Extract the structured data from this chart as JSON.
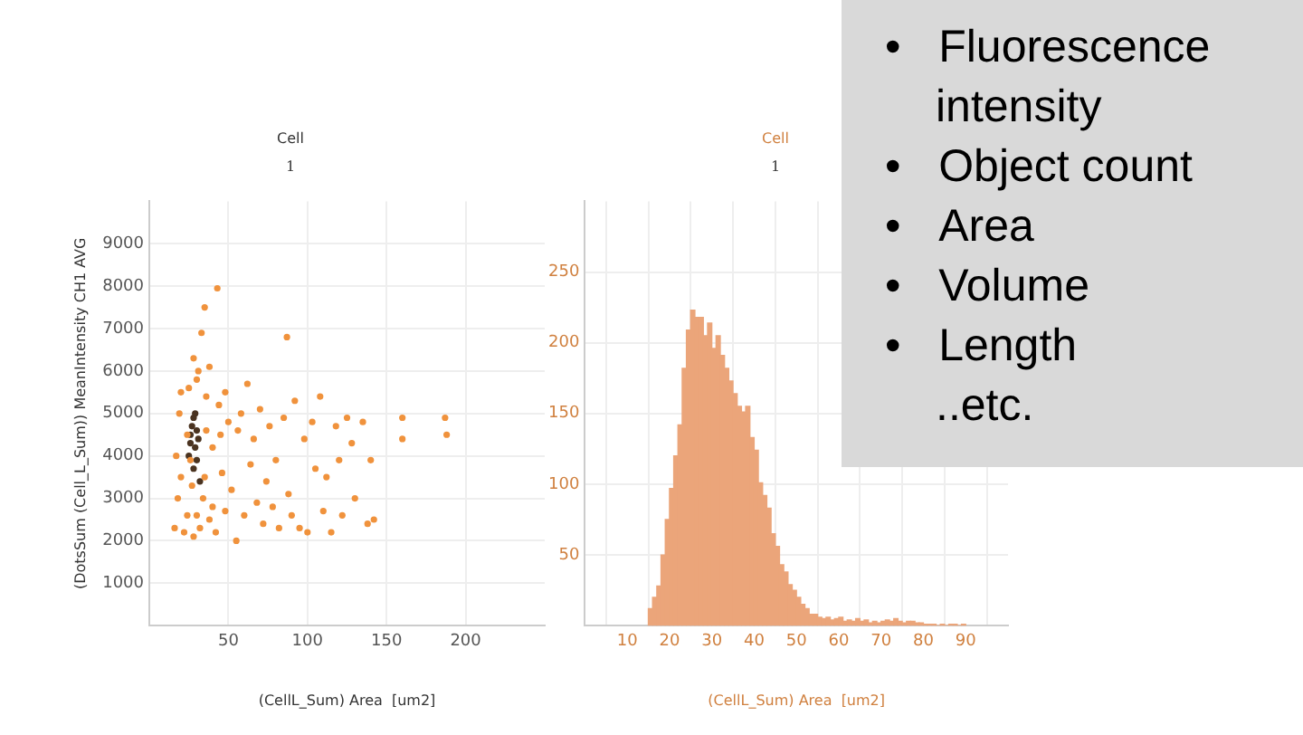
{
  "chart_data": [
    {
      "type": "scatter",
      "title": "Cell",
      "subtitle": "1",
      "xlabel": "(CellL_Sum) Area  [um2]",
      "ylabel": "(DotsSum (Cell_L_Sum)) MeanIntensity CH1 AVG",
      "xlim": [
        0,
        250
      ],
      "xticks": [
        50,
        100,
        150,
        200
      ],
      "ylim": [
        0,
        10000
      ],
      "yticks": [
        1000,
        2000,
        3000,
        4000,
        5000,
        6000,
        7000,
        8000,
        9000
      ],
      "grid": true,
      "legend": false,
      "marker": "circle",
      "series": [
        {
          "color": "#f0923c",
          "x": [
            16,
            18,
            17,
            19,
            20,
            22,
            24,
            25,
            27,
            28,
            30,
            32,
            34,
            36,
            38,
            40,
            42,
            44,
            46,
            48,
            50,
            52,
            55,
            56,
            58,
            60,
            62,
            64,
            66,
            68,
            70,
            72,
            74,
            76,
            78,
            80,
            82,
            85,
            87,
            88,
            90,
            92,
            95,
            98,
            100,
            103,
            105,
            108,
            110,
            112,
            115,
            118,
            120,
            122,
            125,
            128,
            130,
            135,
            138,
            140,
            142,
            160,
            160,
            187,
            188,
            33,
            35,
            43,
            28,
            38,
            31,
            24,
            26,
            45,
            48,
            20,
            35,
            40,
            30,
            36
          ],
          "values": [
            2300,
            3000,
            4000,
            5000,
            5500,
            2200,
            2600,
            5600,
            3300,
            2100,
            5800,
            2300,
            3000,
            5400,
            2500,
            4200,
            2200,
            5200,
            3600,
            2700,
            4800,
            3200,
            2000,
            4600,
            5000,
            2600,
            5700,
            3800,
            4400,
            2900,
            5100,
            2400,
            3400,
            4700,
            2800,
            3900,
            2300,
            4900,
            6800,
            3100,
            2600,
            5300,
            2300,
            4400,
            2200,
            4800,
            3700,
            5400,
            2700,
            3500,
            2200,
            4700,
            3900,
            2600,
            4900,
            4300,
            3000,
            4800,
            2400,
            3900,
            2500,
            4900,
            4400,
            4900,
            4500,
            6900,
            7500,
            7950,
            6300,
            6100,
            6000,
            4500,
            3900,
            4500,
            5500,
            3500,
            3500,
            2800,
            2600,
            4600
          ]
        },
        {
          "color": "#4a3320",
          "x": [
            25,
            26,
            27,
            28,
            29,
            30,
            30,
            31,
            28,
            32,
            29,
            26
          ],
          "values": [
            4000,
            4300,
            4700,
            4900,
            4200,
            4600,
            3900,
            4400,
            3700,
            3400,
            5000,
            4500
          ]
        }
      ]
    },
    {
      "type": "histogram",
      "title": "Cell",
      "subtitle": "1",
      "xlabel": "(CellL_Sum) Area  [um2]",
      "xlim": [
        0,
        100
      ],
      "xticks": [
        10,
        20,
        30,
        40,
        50,
        60,
        70,
        80,
        90
      ],
      "ylim": [
        0,
        300
      ],
      "yticks": [
        50,
        100,
        150,
        200,
        250
      ],
      "grid": true,
      "legend": false,
      "color": "#eba57a",
      "bins": [
        15,
        16,
        17,
        18,
        19,
        20,
        21,
        22,
        23,
        24,
        25,
        26,
        27,
        28,
        29,
        30,
        31,
        32,
        33,
        34,
        35,
        36,
        37,
        38,
        39,
        40,
        41,
        42,
        43,
        44,
        45,
        46,
        47,
        48,
        49,
        50,
        51,
        52,
        53,
        54,
        55,
        56,
        57,
        58,
        59,
        60,
        61,
        62,
        63,
        64,
        65,
        66,
        67,
        68,
        69,
        70,
        71,
        72,
        73,
        74,
        75,
        76,
        77,
        78,
        79,
        80,
        81,
        82,
        83,
        84,
        85,
        86,
        87,
        88,
        89,
        90
      ],
      "values": [
        12,
        20,
        28,
        50,
        75,
        97,
        120,
        142,
        182,
        209,
        223,
        218,
        218,
        205,
        214,
        196,
        205,
        191,
        182,
        173,
        164,
        155,
        151,
        155,
        133,
        124,
        101,
        92,
        83,
        65,
        56,
        43,
        38,
        29,
        25,
        20,
        15,
        12,
        8,
        8,
        6,
        5,
        6,
        4,
        5,
        6,
        3,
        4,
        3,
        5,
        3,
        4,
        2,
        3,
        2,
        3,
        4,
        3,
        5,
        3,
        2,
        3,
        3,
        2,
        2,
        1,
        1,
        1,
        0,
        1,
        0,
        1,
        1,
        0,
        1
      ]
    },
    {
      "type": "other",
      "annotations": [
        "• Fluorescence intensity",
        "• Object count",
        "• Area",
        "• Volume",
        "• Length",
        "..etc."
      ]
    }
  ]
}
